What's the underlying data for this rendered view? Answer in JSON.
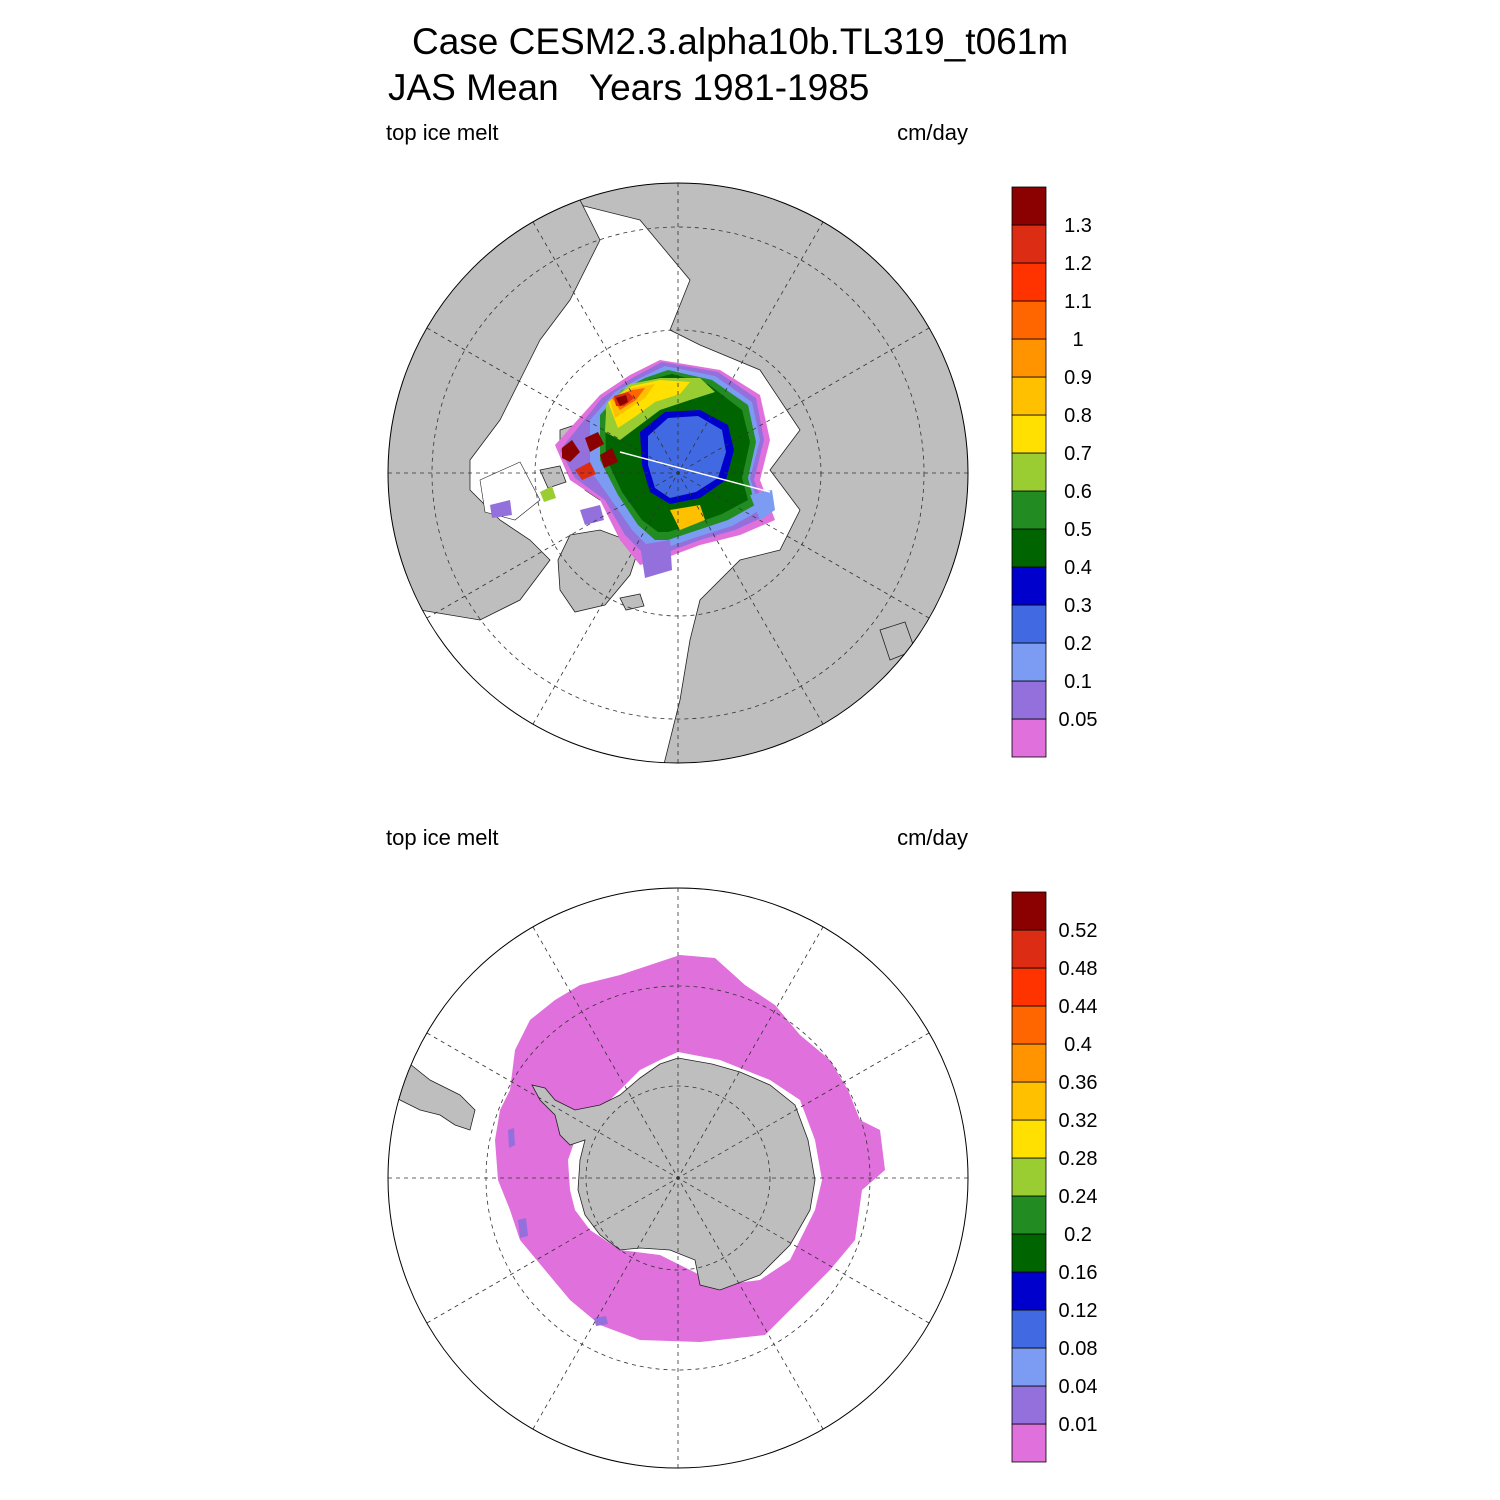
{
  "page": {
    "title_line1": "Case CESM2.3.alpha10b.TL319_t061m",
    "title_line2": "JAS Mean   Years 1981-1985"
  },
  "colors": {
    "land": "#bebebe",
    "ocean": "#ffffff",
    "grid": "#333333",
    "palette": [
      "#e070dc",
      "#9370db",
      "#7b9cf2",
      "#4169e1",
      "#0000cd",
      "#006400",
      "#228b22",
      "#9acd32",
      "#ffe000",
      "#ffc000",
      "#ff9400",
      "#ff6600",
      "#ff3300",
      "#dc2c14",
      "#8b0000"
    ]
  },
  "chart_data": [
    {
      "type": "heatmap",
      "projection": "polar-stereographic",
      "hemisphere": "north",
      "variable": "top ice melt",
      "units": "cm/day",
      "contour_levels": [
        0.05,
        0.1,
        0.2,
        0.3,
        0.4,
        0.5,
        0.6,
        0.7,
        0.8,
        0.9,
        1,
        1.1,
        1.2,
        1.3
      ],
      "contour_labels": [
        "0.05",
        "0.1",
        "0.2",
        "0.3",
        "0.4",
        "0.5",
        "0.6",
        "0.7",
        "0.8",
        "0.9",
        "1",
        "1.1",
        "1.2",
        "1.3"
      ],
      "summary": "Highest melt (~1.3 cm/day) along the Canadian Archipelago / Beaufort coast; central Arctic mostly 0.2-0.3 cm/day"
    },
    {
      "type": "heatmap",
      "projection": "polar-stereographic",
      "hemisphere": "south",
      "variable": "top ice melt",
      "units": "cm/day",
      "contour_levels": [
        0.01,
        0.04,
        0.08,
        0.12,
        0.16,
        0.2,
        0.24,
        0.28,
        0.32,
        0.36,
        0.4,
        0.44,
        0.48,
        0.52
      ],
      "contour_labels": [
        "0.01",
        "0.04",
        "0.08",
        "0.12",
        "0.16",
        "0.2",
        "0.24",
        "0.28",
        "0.32",
        "0.36",
        "0.4",
        "0.44",
        "0.48",
        "0.52"
      ],
      "summary": "Sea-ice ring around Antarctica almost entirely below 0.01 cm/day"
    }
  ]
}
